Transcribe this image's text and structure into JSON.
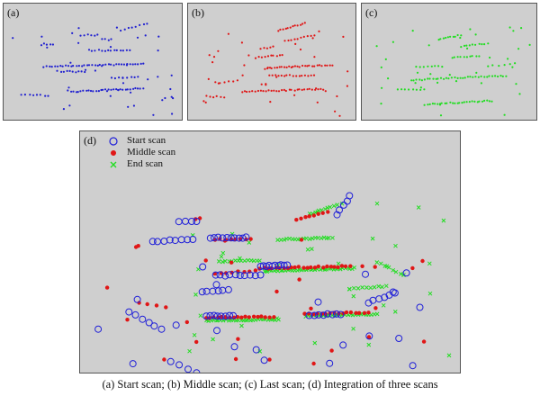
{
  "panels": {
    "a": {
      "label": "(a)",
      "color": "#1f1fd0"
    },
    "b": {
      "label": "(b)",
      "color": "#e01616"
    },
    "c": {
      "label": "(c)",
      "color": "#22dd22"
    },
    "d": {
      "label": "(d)"
    }
  },
  "legend": {
    "start": "Start scan",
    "middle": "Middle scan",
    "end": "End scan"
  },
  "colors": {
    "start": "#2020d8",
    "middle": "#e01616",
    "end": "#22dd22",
    "background": "#cfcfcf"
  },
  "caption": "(a) Start scan; (b) Middle scan; (c) Last scan; (d) Integration of three scans"
}
